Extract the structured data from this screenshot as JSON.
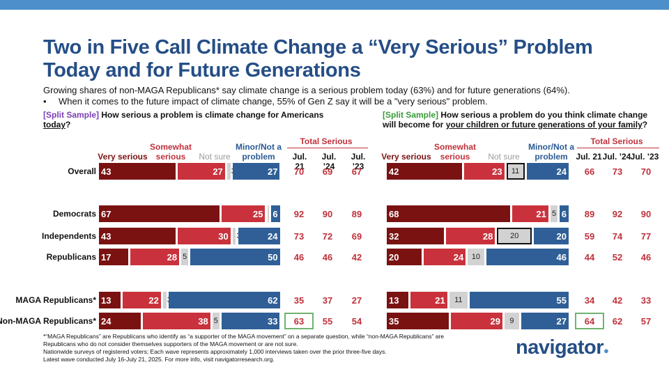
{
  "title": "Two in Five Call Climate Change a “Very Serious” Problem Today and for Future Generations",
  "subtitle": "Growing shares of non-MAGA Republicans* say climate change is a serious problem today (63%) and for future generations (64%).",
  "bullet": "When it comes to the future impact of climate change, 55% of Gen Z say it will be a \"very serious\" problem.",
  "bullet_marker": "•",
  "question_left": {
    "tag": "[Split Sample]",
    "text": "How serious a problem is climate change for Americans",
    "underlined": "today",
    "end": "?"
  },
  "question_right": {
    "tag": "[Split Sample]",
    "text": "How serious a problem do you think climate change will become for",
    "underlined": "your children or future generations of your family",
    "end": "?"
  },
  "headers": {
    "very_serious": "Very serious",
    "somewhat_serious": "Somewhat serious",
    "not_sure": "Not sure",
    "minor": "Minor/Not a problem",
    "total_serious": "Total Serious",
    "waves": [
      "Jul. 21",
      "Jul. ’24",
      "Jul. ’23"
    ]
  },
  "colors": {
    "very_serious": "#7a1212",
    "somewhat_serious": "#c9323c",
    "not_sure": "#d2d2d2",
    "minor": "#2f5f96",
    "title": "#254e86",
    "highlight_box": "#6fb36f"
  },
  "chart_data": [
    {
      "type": "bar",
      "stacked": true,
      "orientation": "horizontal",
      "panel": "today",
      "categories": [
        "Overall",
        "Democrats",
        "Independents",
        "Republicans",
        "MAGA Republicans*",
        "Non-MAGA Republicans*"
      ],
      "series": [
        {
          "name": "Very serious",
          "values": [
            43,
            67,
            43,
            17,
            13,
            24
          ]
        },
        {
          "name": "Somewhat serious",
          "values": [
            27,
            25,
            30,
            28,
            22,
            38
          ]
        },
        {
          "name": "Not sure",
          "values": [
            3,
            2,
            3,
            5,
            3,
            5
          ]
        },
        {
          "name": "Minor/Not a problem",
          "values": [
            27,
            6,
            24,
            50,
            62,
            33
          ]
        }
      ],
      "not_sure_labels": [
        "3",
        "",
        "3",
        "5",
        "3",
        "5"
      ],
      "total_serious": {
        "Jul. 21": [
          70,
          92,
          73,
          46,
          35,
          63
        ],
        "Jul. ’24": [
          69,
          90,
          72,
          46,
          37,
          55
        ],
        "Jul. ’23": [
          67,
          89,
          69,
          42,
          27,
          54
        ]
      }
    },
    {
      "type": "bar",
      "stacked": true,
      "orientation": "horizontal",
      "panel": "future generations",
      "categories": [
        "Overall",
        "Democrats",
        "Independents",
        "Republicans",
        "MAGA Republicans*",
        "Non-MAGA Republicans*"
      ],
      "series": [
        {
          "name": "Very serious",
          "values": [
            42,
            68,
            32,
            20,
            13,
            35
          ]
        },
        {
          "name": "Somewhat serious",
          "values": [
            23,
            21,
            28,
            24,
            21,
            29
          ]
        },
        {
          "name": "Not sure",
          "values": [
            11,
            5,
            20,
            10,
            11,
            9
          ]
        },
        {
          "name": "Minor/Not a problem",
          "values": [
            24,
            6,
            20,
            46,
            55,
            27
          ]
        }
      ],
      "total_serious": {
        "Jul. 21": [
          66,
          89,
          59,
          44,
          34,
          64
        ],
        "Jul. ’24": [
          73,
          92,
          74,
          52,
          42,
          62
        ],
        "Jul. ’23": [
          70,
          90,
          77,
          46,
          33,
          57
        ]
      }
    }
  ],
  "footnote": [
    "*“MAGA Republicans” are Republicans who identify as “a supporter of the MAGA movement” on a separate question, while “non-MAGA Republicans” are Republicans who do not consider themselves supporters of the MAGA movement or are not sure.",
    "Nationwide surveys of registered voters; Each wave represents approximately 1,000 interviews taken over the prior three-five days.",
    "Latest wave conducted July 16-July 21, 2025. For more info, visit navigatorresearch.org."
  ],
  "logo": {
    "text": "navigator",
    "dot": "●"
  }
}
